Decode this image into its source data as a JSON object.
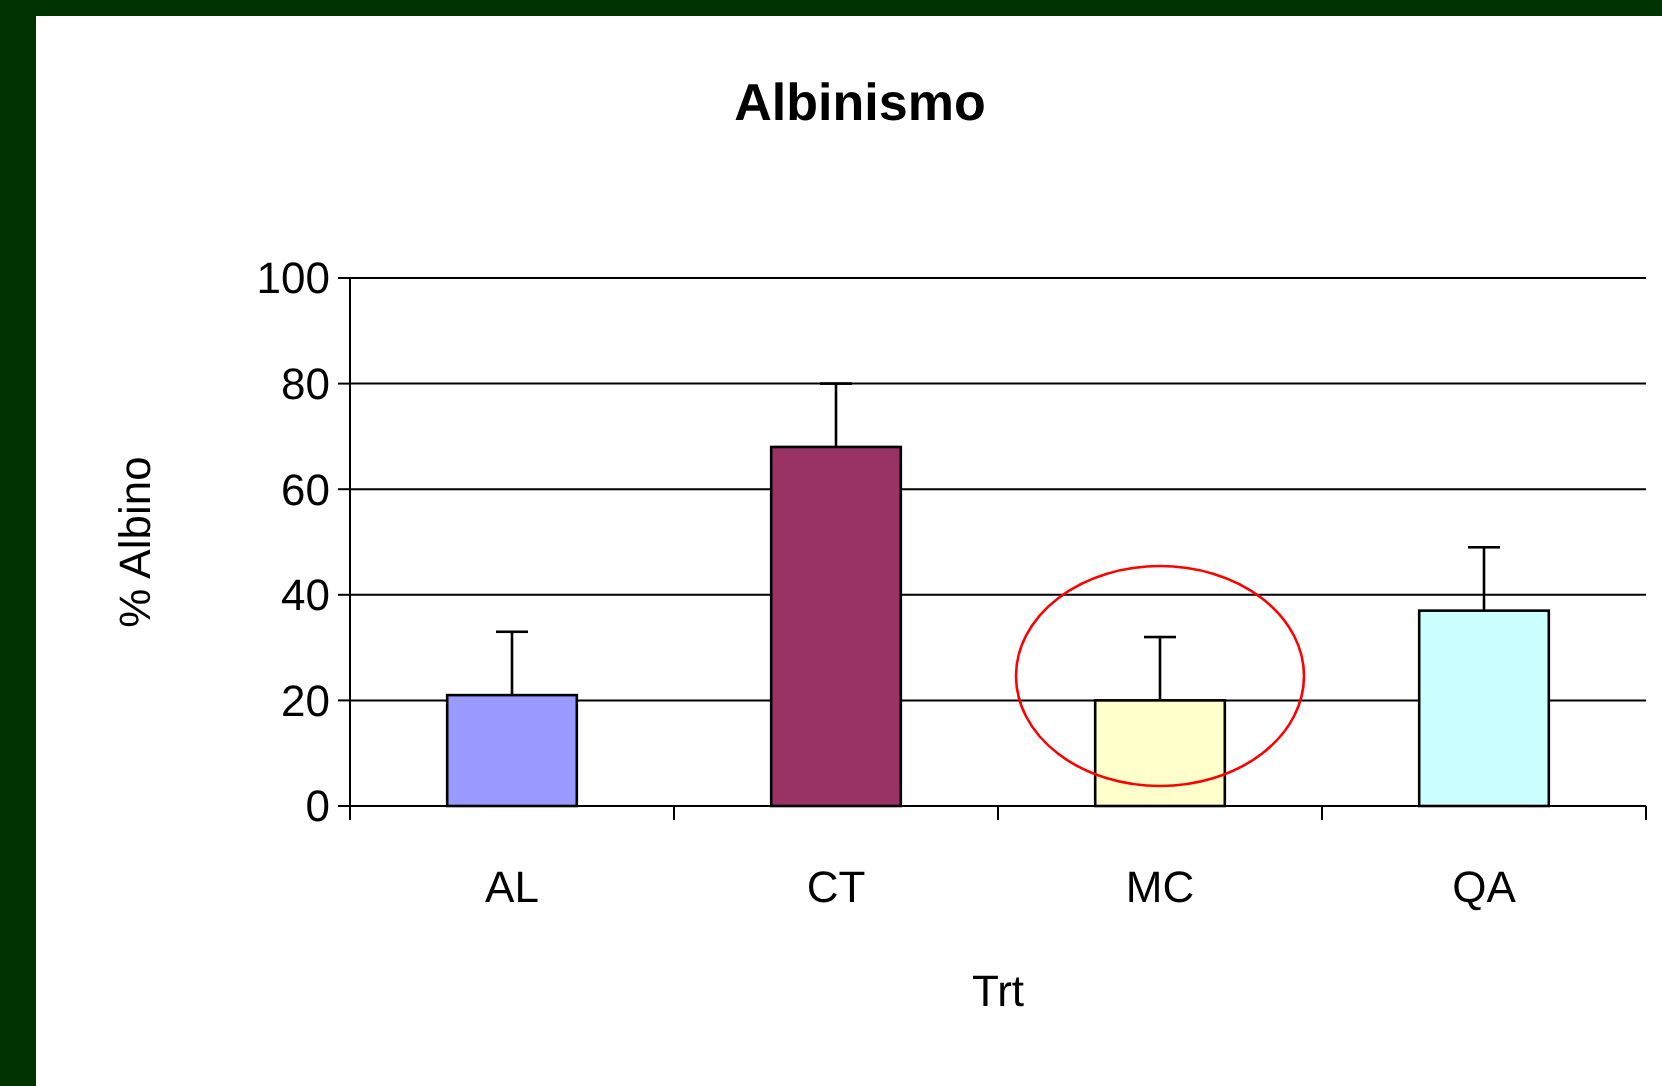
{
  "chart_data": {
    "type": "bar",
    "title": "Albinismo",
    "xlabel": "Trt",
    "ylabel": "% Albino",
    "categories": [
      "AL",
      "CT",
      "MC",
      "QA"
    ],
    "values": [
      21,
      68,
      20,
      37
    ],
    "colors": [
      "#9999ff",
      "#993366",
      "#ffffcc",
      "#ccffff"
    ],
    "errors": [
      [
        21,
        33
      ],
      [
        68,
        80
      ],
      [
        20,
        32
      ],
      [
        37,
        49
      ]
    ],
    "ylim": [
      0,
      100
    ],
    "yticks": [
      0,
      20,
      40,
      60,
      80,
      100
    ],
    "grid": "y"
  }
}
